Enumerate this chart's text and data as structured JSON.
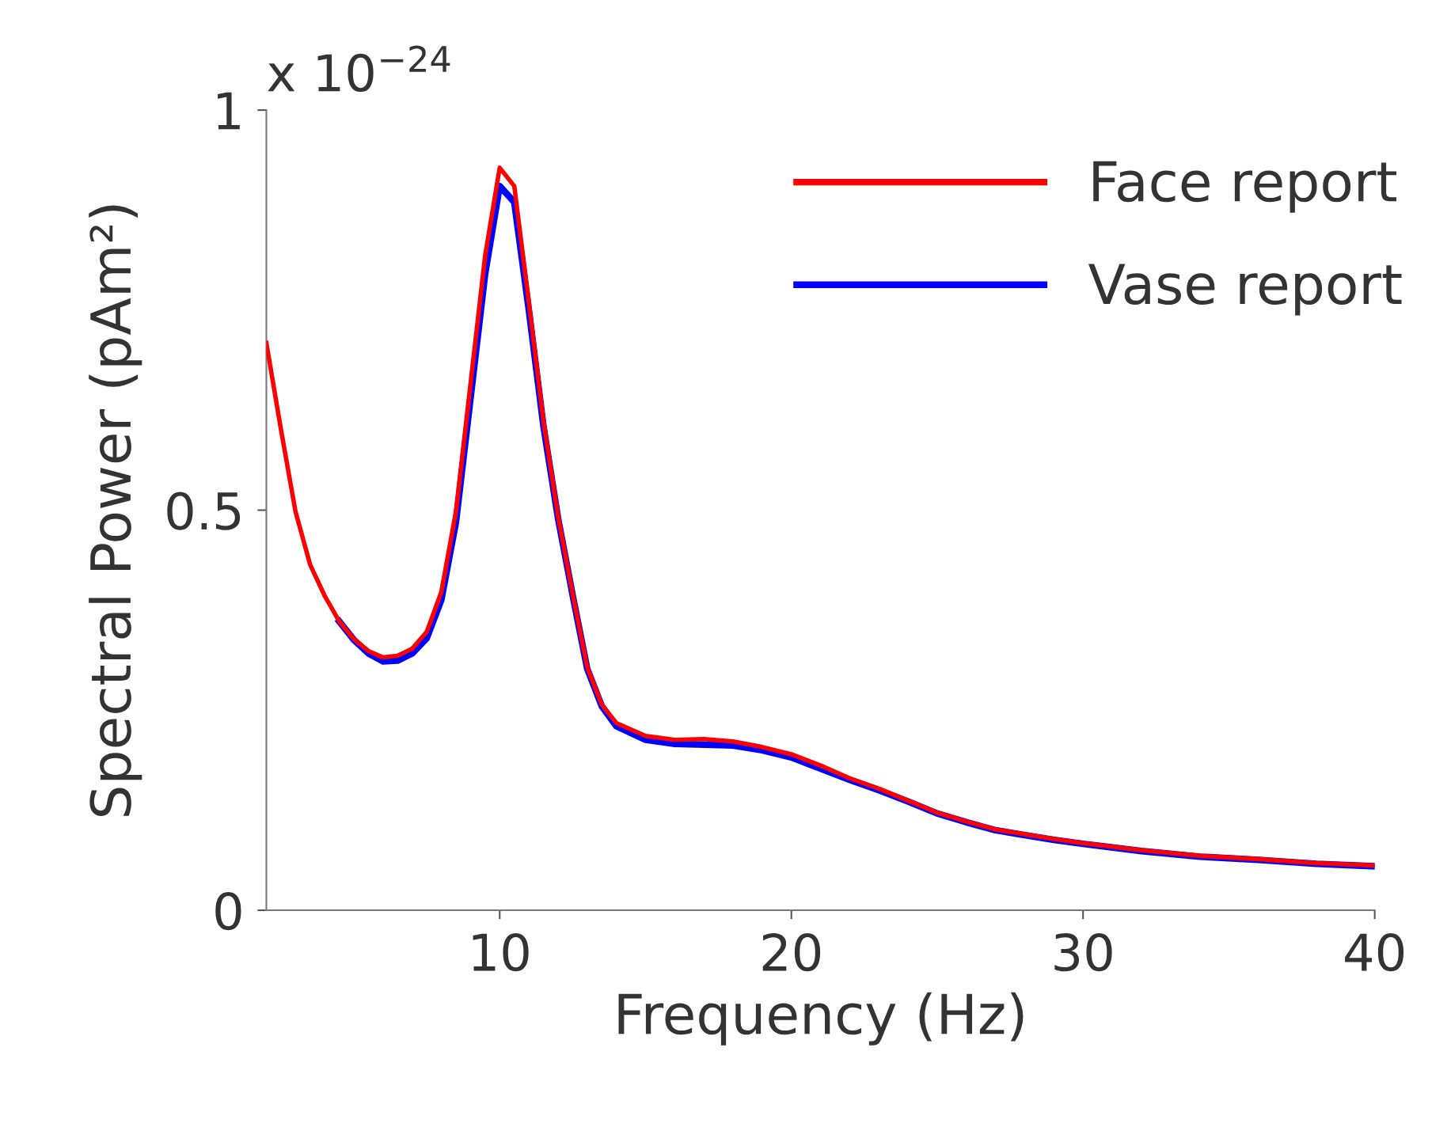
{
  "chart_data": {
    "type": "line",
    "xlabel": "Frequency (Hz)",
    "ylabel": "Spectral Power (pAm²)",
    "annotations": [
      "x 10$^{−24}$"
    ],
    "xlim": [
      2,
      40
    ],
    "xticks": [
      10,
      20,
      30,
      40
    ],
    "ylim": [
      0,
      1
    ],
    "yticks": [
      0,
      0.5,
      1
    ],
    "grid": false,
    "legend": "top right",
    "marker": "none",
    "line_style": "solid",
    "x": [
      2,
      2.5,
      3,
      3.5,
      4,
      4.5,
      5,
      5.5,
      6,
      6.5,
      7,
      7.5,
      8,
      8.5,
      9,
      9.5,
      10,
      10.5,
      11,
      11.5,
      12,
      12.5,
      13,
      13.5,
      14,
      15,
      16,
      17,
      18,
      19,
      20,
      21,
      22,
      23,
      24,
      25,
      26,
      27,
      28,
      29,
      30,
      32,
      34,
      36,
      38,
      40
    ],
    "series": [
      {
        "name": "Face report",
        "color": "#ff0000",
        "values": [
          0.709,
          0.601,
          0.498,
          0.432,
          0.393,
          0.361,
          0.339,
          0.324,
          0.316,
          0.318,
          0.327,
          0.348,
          0.398,
          0.498,
          0.658,
          0.818,
          0.928,
          0.905,
          0.76,
          0.612,
          0.493,
          0.396,
          0.304,
          0.257,
          0.234,
          0.218,
          0.213,
          0.214,
          0.211,
          0.204,
          0.195,
          0.181,
          0.165,
          0.152,
          0.137,
          0.122,
          0.111,
          0.101,
          0.095,
          0.089,
          0.084,
          0.075,
          0.068,
          0.064,
          0.059,
          0.056
        ]
      },
      {
        "name": "Vase report",
        "color": "#0000ff",
        "values": [
          null,
          null,
          null,
          null,
          null,
          0.361,
          0.338,
          0.321,
          0.311,
          0.312,
          0.321,
          0.34,
          0.388,
          0.485,
          0.64,
          0.795,
          0.905,
          0.885,
          0.75,
          0.605,
          0.49,
          0.394,
          0.302,
          0.255,
          0.23,
          0.213,
          0.208,
          0.207,
          0.206,
          0.2,
          0.191,
          0.177,
          0.163,
          0.15,
          0.136,
          0.121,
          0.11,
          0.1,
          0.094,
          0.088,
          0.083,
          0.074,
          0.067,
          0.063,
          0.058,
          0.055
        ]
      }
    ]
  }
}
